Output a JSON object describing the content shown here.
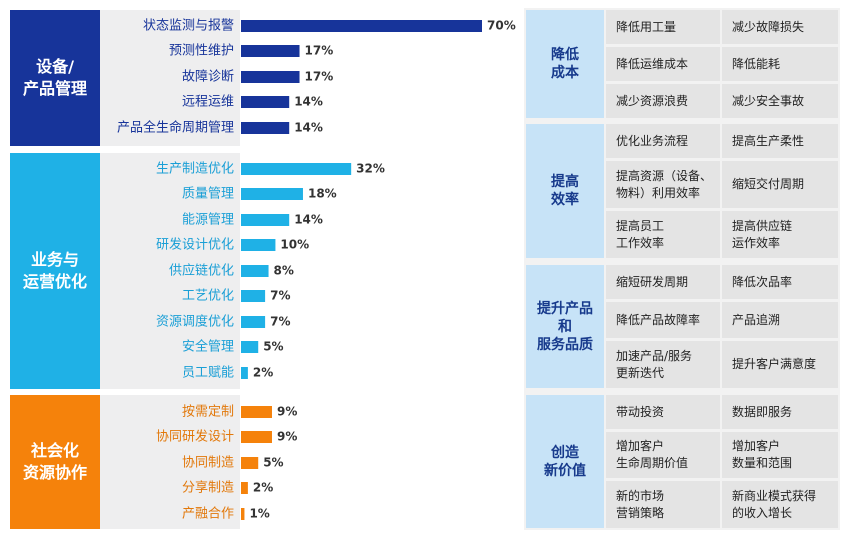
{
  "groups": [
    {
      "label": "设备/\n产品管理",
      "color": "#17349a",
      "label_color": "#17349a"
    },
    {
      "label": "业务与\n运营优化",
      "color": "#1fb1e6",
      "label_color": "#1a9fd6"
    },
    {
      "label": "社会化\n资源协作",
      "color": "#f5820b",
      "label_color": "#e2780a"
    }
  ],
  "chart_data": {
    "type": "bar",
    "orientation": "horizontal",
    "unit": "%",
    "xlim": [
      0,
      70
    ],
    "categories": [
      "状态监测与报警",
      "预测性维护",
      "故障诊断",
      "远程运维",
      "产品全生命周期管理",
      "生产制造优化",
      "质量管理",
      "能源管理",
      "研发设计优化",
      "供应链优化",
      "工艺优化",
      "资源调度优化",
      "安全管理",
      "员工赋能",
      "按需定制",
      "协同研发设计",
      "协同制造",
      "分享制造",
      "产融合作"
    ],
    "values": [
      70,
      17,
      17,
      14,
      14,
      32,
      18,
      14,
      10,
      8,
      7,
      7,
      5,
      2,
      9,
      9,
      5,
      2,
      1
    ],
    "value_labels": [
      "70%",
      "17%",
      "17%",
      "14%",
      "14%",
      "32%",
      "18%",
      "14%",
      "10%",
      "8%",
      "7%",
      "7%",
      "5%",
      "2%",
      "9%",
      "9%",
      "5%",
      "2%",
      "1%"
    ],
    "group_index": [
      0,
      0,
      0,
      0,
      0,
      1,
      1,
      1,
      1,
      1,
      1,
      1,
      1,
      1,
      2,
      2,
      2,
      2,
      2
    ]
  },
  "benefits": [
    {
      "title": "降低\n成本",
      "items": [
        [
          "降低用工量",
          "减少故障损失"
        ],
        [
          "降低运维成本",
          "降低能耗"
        ],
        [
          "减少资源浪费",
          "减少安全事故"
        ]
      ]
    },
    {
      "title": "提高\n效率",
      "items": [
        [
          "优化业务流程",
          "提高生产柔性"
        ],
        [
          "提高资源（设备、\n物料）利用效率",
          "缩短交付周期"
        ],
        [
          "提高员工\n工作效率",
          "提高供应链\n运作效率"
        ]
      ]
    },
    {
      "title": "提升产品\n和\n服务品质",
      "items": [
        [
          "缩短研发周期",
          "降低次品率"
        ],
        [
          "降低产品故障率",
          "产品追溯"
        ],
        [
          "加速产品/服务\n更新迭代",
          "提升客户满意度"
        ]
      ]
    },
    {
      "title": "创造\n新价值",
      "items": [
        [
          "带动投资",
          "数据即服务"
        ],
        [
          "增加客户\n生命周期价值",
          "增加客户\n数量和范围"
        ],
        [
          "新的市场\n营销策略",
          "新商业模式获得\n的收入增长"
        ]
      ]
    }
  ]
}
